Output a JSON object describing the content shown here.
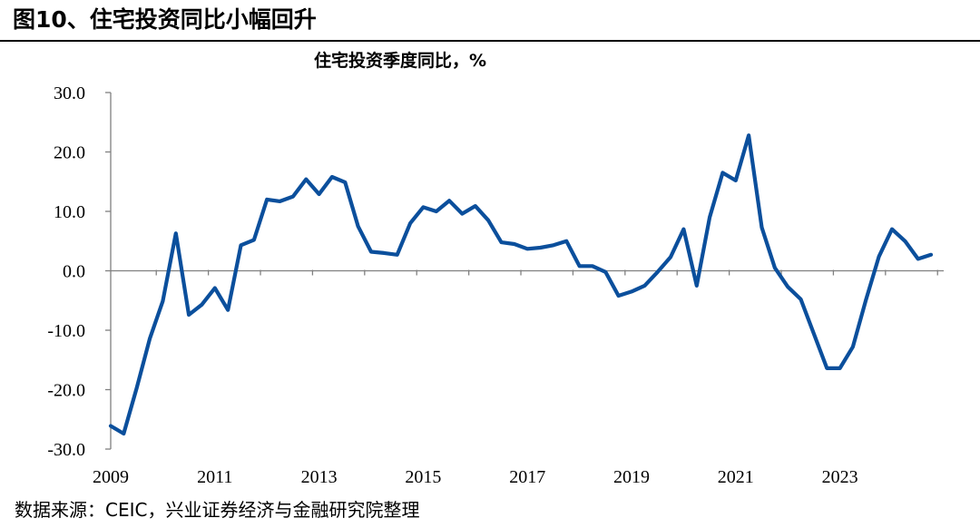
{
  "figure_title": "图10、住宅投资同比小幅回升",
  "source_note": "数据来源：CEIC，兴业证券经济与金融研究院整理",
  "colors": {
    "line": "#0B4F9C",
    "axis": "#808080"
  },
  "chart_data": {
    "type": "line",
    "title": "住宅投资季度同比，%",
    "xlabel": "",
    "ylabel": "",
    "ylim": [
      -30,
      30
    ],
    "y_ticks": [
      "30.0",
      "20.0",
      "10.0",
      "0.0",
      "-10.0",
      "-20.0",
      "-30.0"
    ],
    "y_tick_values": [
      30,
      20,
      10,
      0,
      -10,
      -20,
      -30
    ],
    "x_tick_labels": [
      "2009",
      "2011",
      "2013",
      "2015",
      "2017",
      "2019",
      "2021",
      "2023"
    ],
    "grid": false,
    "legend": "none",
    "series": [
      {
        "x": [
          "2009Q1",
          "2009Q2",
          "2009Q3",
          "2009Q4",
          "2010Q1",
          "2010Q2",
          "2010Q3",
          "2010Q4",
          "2011Q1",
          "2011Q2",
          "2011Q3",
          "2011Q4",
          "2012Q1",
          "2012Q2",
          "2012Q3",
          "2012Q4",
          "2013Q1",
          "2013Q2",
          "2013Q3",
          "2013Q4",
          "2014Q1",
          "2014Q2",
          "2014Q3",
          "2014Q4",
          "2015Q1",
          "2015Q2",
          "2015Q3",
          "2015Q4",
          "2016Q1",
          "2016Q2",
          "2016Q3",
          "2016Q4",
          "2017Q1",
          "2017Q2",
          "2017Q3",
          "2017Q4",
          "2018Q1",
          "2018Q2",
          "2018Q3",
          "2018Q4",
          "2019Q1",
          "2019Q2",
          "2019Q3",
          "2019Q4",
          "2020Q1",
          "2020Q2",
          "2020Q3",
          "2020Q4",
          "2021Q1",
          "2021Q2",
          "2021Q3",
          "2021Q4",
          "2022Q1",
          "2022Q2",
          "2022Q3",
          "2022Q4",
          "2023Q1",
          "2023Q2",
          "2023Q3",
          "2023Q4",
          "2024Q1",
          "2024Q2",
          "2024Q3",
          "2024Q4"
        ],
        "values": [
          -26.1,
          -27.4,
          -19.7,
          -11.4,
          -5.1,
          6.3,
          -7.4,
          -5.7,
          -2.9,
          -6.6,
          4.3,
          5.2,
          12.0,
          11.7,
          12.5,
          15.4,
          12.9,
          15.8,
          14.9,
          7.5,
          3.2,
          3.0,
          2.7,
          8.0,
          10.7,
          10.0,
          11.8,
          9.6,
          10.9,
          8.5,
          4.8,
          4.5,
          3.7,
          3.9,
          4.3,
          5.0,
          0.8,
          0.8,
          -0.2,
          -4.2,
          -3.5,
          -2.5,
          -0.2,
          2.3,
          7.0,
          -2.5,
          9.0,
          16.5,
          15.2,
          22.8,
          7.3,
          0.5,
          -2.7,
          -4.8,
          -10.6,
          -16.4,
          -16.4,
          -12.8,
          -4.9,
          2.4,
          7.0,
          5.0,
          2.0,
          2.7
        ]
      }
    ]
  }
}
